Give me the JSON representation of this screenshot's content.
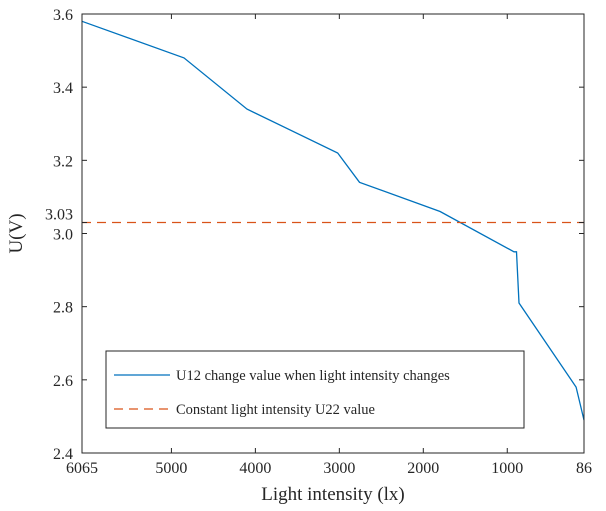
{
  "chart_data": {
    "type": "line",
    "title": "",
    "xlabel": "Light intensity (lx)",
    "ylabel": "U(V)",
    "xlim": [
      6065,
      86
    ],
    "x_reversed": true,
    "ylim": [
      2.4,
      3.6
    ],
    "grid": false,
    "legend_position": "bottom-left",
    "x_ticks": [
      6065,
      5000,
      4000,
      3000,
      2000,
      1000,
      86
    ],
    "y_ticks": [
      2.4,
      2.6,
      2.8,
      3,
      3.2,
      3.4,
      3.6
    ],
    "y_extra_ticks": [
      3.03
    ],
    "series": [
      {
        "name": "U12 change value when light intensity changes",
        "style": "solid",
        "color": "#0072BD",
        "x": [
          6065,
          4850,
          4100,
          3020,
          2760,
          1800,
          920,
          890,
          860,
          180,
          86
        ],
        "y": [
          3.58,
          3.48,
          3.34,
          3.22,
          3.14,
          3.06,
          2.95,
          2.95,
          2.81,
          2.58,
          2.49
        ]
      },
      {
        "name": "Constant light intensity U22 value",
        "style": "dashed",
        "color": "#D95319",
        "x": [
          6065,
          86
        ],
        "y": [
          3.03,
          3.03
        ]
      }
    ]
  }
}
